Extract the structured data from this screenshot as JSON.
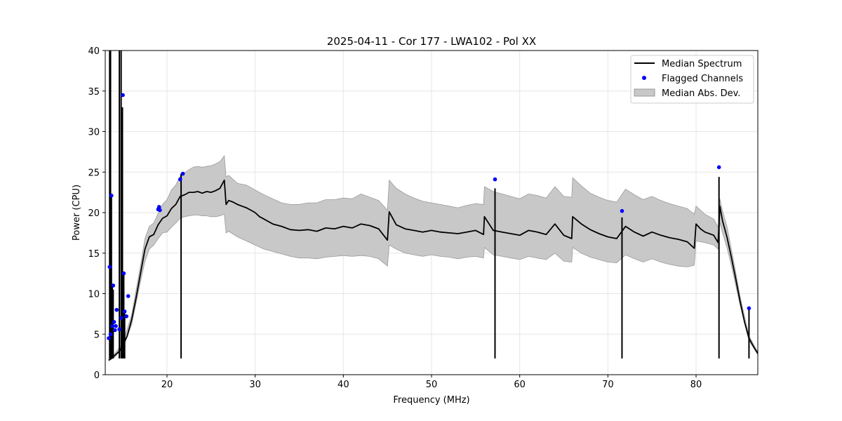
{
  "chart_data": {
    "type": "line",
    "title": "2025-04-11 - Cor 177 - LWA102 - Pol XX",
    "xlabel": "Frequency (MHz)",
    "ylabel": "Power (CPU)",
    "xlim": [
      13,
      87
    ],
    "ylim": [
      0,
      40
    ],
    "xticks": [
      20,
      30,
      40,
      50,
      60,
      70,
      80
    ],
    "yticks": [
      0,
      5,
      10,
      15,
      20,
      25,
      30,
      35,
      40
    ],
    "grid": true,
    "legend_position": "upper-right",
    "colors": {
      "median": "#000000",
      "flagged": "#0000ff",
      "mad_fill": "#c8c8c8",
      "mad_edge": "#9a9a9a",
      "grid": "#e6e6e6"
    },
    "series": [
      {
        "name": "Median Spectrum",
        "kind": "line",
        "x": [
          13.4,
          13.7,
          14.0,
          14.5,
          15.0,
          15.5,
          16.0,
          16.5,
          17.0,
          17.5,
          18.0,
          18.5,
          19.0,
          19.5,
          20.0,
          20.5,
          21.0,
          21.5,
          22.0,
          22.5,
          23.0,
          23.5,
          24.0,
          24.5,
          25.0,
          25.5,
          26.0,
          26.5,
          26.7,
          27.0,
          27.5,
          28.0,
          28.5,
          29.0,
          29.5,
          30.0,
          30.5,
          31.0,
          32.0,
          33.0,
          34.0,
          35.0,
          36.0,
          37.0,
          38.0,
          39.0,
          40.0,
          41.0,
          42.0,
          43.0,
          44.0,
          45.0,
          45.2,
          46.0,
          47.0,
          48.0,
          49.0,
          50.0,
          51.0,
          52.0,
          53.0,
          54.0,
          55.0,
          55.9,
          56.0,
          57.0,
          58.0,
          59.0,
          60.0,
          61.0,
          62.0,
          63.0,
          64.0,
          65.0,
          65.9,
          66.0,
          67.0,
          68.0,
          69.0,
          70.0,
          71.0,
          72.0,
          73.0,
          74.0,
          75.0,
          76.0,
          77.0,
          78.0,
          79.0,
          79.8,
          80.0,
          80.5,
          81.0,
          82.0,
          82.5,
          82.7,
          83.0,
          83.5,
          84.0,
          84.5,
          85.0,
          85.5,
          86.0,
          86.5,
          87.0
        ],
        "y": [
          1.8,
          2.0,
          2.3,
          2.8,
          3.6,
          4.8,
          6.8,
          9.5,
          12.5,
          15.5,
          17.0,
          17.3,
          18.5,
          19.3,
          19.6,
          20.5,
          21.0,
          22.0,
          22.2,
          22.5,
          22.5,
          22.6,
          22.4,
          22.6,
          22.5,
          22.7,
          23.0,
          24.0,
          21.0,
          21.5,
          21.3,
          21.0,
          20.8,
          20.6,
          20.3,
          20.0,
          19.5,
          19.2,
          18.6,
          18.3,
          17.9,
          17.8,
          17.9,
          17.7,
          18.1,
          18.0,
          18.3,
          18.1,
          18.6,
          18.4,
          18.0,
          16.6,
          20.1,
          18.5,
          18.0,
          17.8,
          17.6,
          17.8,
          17.6,
          17.5,
          17.4,
          17.6,
          17.8,
          17.3,
          19.5,
          17.8,
          17.6,
          17.4,
          17.2,
          17.8,
          17.6,
          17.3,
          18.6,
          17.2,
          16.8,
          19.5,
          18.6,
          17.9,
          17.4,
          17.0,
          16.8,
          18.3,
          17.6,
          17.1,
          17.6,
          17.2,
          16.9,
          16.7,
          16.4,
          15.6,
          18.6,
          18.0,
          17.6,
          17.2,
          16.3,
          20.8,
          19.0,
          17.0,
          14.5,
          11.8,
          9.0,
          6.5,
          4.5,
          3.5,
          2.6
        ]
      },
      {
        "name": "Median Abs. Dev.",
        "kind": "band",
        "x": [
          13.4,
          14.0,
          15.0,
          16.0,
          17.0,
          17.5,
          18.0,
          18.5,
          19.0,
          19.5,
          20.0,
          20.5,
          21.0,
          21.5,
          22.0,
          22.5,
          23.0,
          23.5,
          24.0,
          24.5,
          25.0,
          25.5,
          26.0,
          26.5,
          26.7,
          27.0,
          28.0,
          29.0,
          30.0,
          31.0,
          32.0,
          33.0,
          34.0,
          35.0,
          36.0,
          37.0,
          38.0,
          39.0,
          40.0,
          41.0,
          42.0,
          43.0,
          44.0,
          45.0,
          45.2,
          46.0,
          47.0,
          48.0,
          49.0,
          50.0,
          51.0,
          52.0,
          53.0,
          54.0,
          55.0,
          55.9,
          56.0,
          57.0,
          58.0,
          59.0,
          60.0,
          61.0,
          62.0,
          63.0,
          64.0,
          65.0,
          65.9,
          66.0,
          67.0,
          68.0,
          69.0,
          70.0,
          71.0,
          72.0,
          73.0,
          74.0,
          75.0,
          76.0,
          77.0,
          78.0,
          79.0,
          79.8,
          80.0,
          81.0,
          82.0,
          82.5,
          82.7,
          83.0,
          83.5,
          84.0,
          84.5,
          85.0,
          86.0,
          87.0
        ],
        "lower": [
          1.7,
          2.1,
          3.3,
          6.2,
          11.5,
          14.0,
          15.5,
          16.0,
          16.8,
          17.5,
          17.6,
          18.2,
          18.7,
          19.3,
          19.5,
          19.6,
          19.7,
          19.7,
          19.6,
          19.6,
          19.5,
          19.5,
          19.6,
          19.8,
          17.5,
          17.7,
          17.0,
          16.5,
          16.0,
          15.5,
          15.2,
          14.9,
          14.6,
          14.4,
          14.4,
          14.3,
          14.5,
          14.6,
          14.7,
          14.6,
          14.7,
          14.6,
          14.3,
          13.4,
          16.0,
          15.5,
          15.0,
          14.8,
          14.6,
          14.8,
          14.6,
          14.5,
          14.3,
          14.5,
          14.6,
          14.4,
          15.7,
          14.8,
          14.6,
          14.4,
          14.2,
          14.6,
          14.4,
          14.2,
          15.0,
          14.0,
          13.9,
          15.7,
          15.0,
          14.5,
          14.2,
          13.9,
          13.8,
          14.8,
          14.3,
          13.9,
          14.3,
          13.9,
          13.6,
          13.4,
          13.3,
          13.5,
          16.5,
          16.3,
          16.0,
          15.5,
          18.8,
          17.5,
          15.7,
          13.5,
          11.0,
          8.5,
          4.2,
          2.5
        ],
        "upper": [
          2.0,
          2.5,
          3.9,
          7.4,
          13.5,
          16.8,
          18.3,
          18.7,
          19.9,
          21.0,
          21.6,
          22.8,
          23.4,
          24.5,
          24.9,
          25.3,
          25.6,
          25.7,
          25.6,
          25.7,
          25.8,
          26.0,
          26.3,
          27.0,
          24.4,
          24.6,
          23.6,
          23.4,
          22.8,
          22.2,
          21.7,
          21.2,
          21.0,
          21.0,
          21.2,
          21.2,
          21.6,
          21.6,
          21.8,
          21.7,
          22.3,
          21.9,
          21.5,
          20.3,
          24.0,
          23.0,
          22.3,
          21.8,
          21.4,
          21.2,
          21.0,
          20.8,
          20.6,
          20.9,
          21.1,
          21.0,
          23.2,
          22.6,
          22.3,
          22.0,
          21.7,
          22.3,
          22.1,
          21.8,
          23.2,
          22.0,
          21.9,
          24.3,
          23.3,
          22.4,
          21.9,
          21.5,
          21.3,
          22.9,
          22.2,
          21.6,
          22.0,
          21.5,
          21.1,
          20.8,
          20.5,
          19.8,
          20.8,
          19.8,
          19.2,
          18.2,
          21.7,
          20.2,
          18.3,
          15.5,
          12.6,
          9.6,
          4.8,
          2.8
        ]
      },
      {
        "name": "Flagged Channels",
        "kind": "scatter",
        "x": [
          13.4,
          13.5,
          13.6,
          13.7,
          13.8,
          13.9,
          14.0,
          14.1,
          14.2,
          14.3,
          14.6,
          14.8,
          15.0,
          15.1,
          15.2,
          15.4,
          15.6,
          19.0,
          19.1,
          19.2,
          21.5,
          21.8,
          57.2,
          71.6,
          82.6,
          86.0
        ],
        "y": [
          4.5,
          13.3,
          5.0,
          22.1,
          6.0,
          11.0,
          6.5,
          5.5,
          6.0,
          8.0,
          5.6,
          7.0,
          34.5,
          12.5,
          7.8,
          7.2,
          9.7,
          20.4,
          20.7,
          20.3,
          24.1,
          24.8,
          24.1,
          20.2,
          25.6,
          8.2
        ]
      },
      {
        "name": "spikes",
        "kind": "vlines",
        "x": [
          13.5,
          13.6,
          13.7,
          13.8,
          13.9,
          14.6,
          14.8,
          14.95,
          15.1,
          15.2,
          21.6,
          57.2,
          71.6,
          82.6,
          86.0
        ],
        "ymax": [
          40,
          40,
          22.1,
          11.0,
          10.5,
          40,
          40,
          33.0,
          12.5,
          8.0,
          24.8,
          23.0,
          19.4,
          24.4,
          8.2
        ]
      }
    ]
  }
}
